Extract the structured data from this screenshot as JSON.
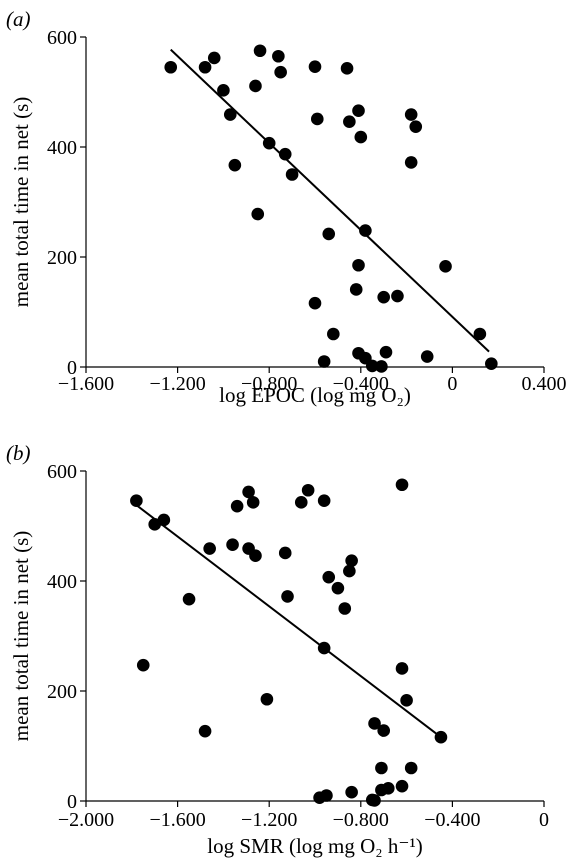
{
  "chart_data": [
    {
      "type": "scatter",
      "panel_label": "(a)",
      "xlabel": "log EPOC (log mg O₂)",
      "ylabel": "mean total time in net (s)",
      "xlim": [
        -1.6,
        0.4
      ],
      "ylim": [
        0,
        600
      ],
      "xticks": [
        -1.6,
        -1.2,
        -0.8,
        -0.4,
        0,
        0.4
      ],
      "xtick_labels": [
        "−1.600",
        "−1.200",
        "−0.800",
        "−0.400",
        "0",
        "0.400"
      ],
      "yticks": [
        0,
        200,
        400,
        600
      ],
      "ytick_labels": [
        "0",
        "200",
        "400",
        "600"
      ],
      "grid": false,
      "points": [
        [
          -1.23,
          545
        ],
        [
          -1.08,
          545
        ],
        [
          -1.04,
          562
        ],
        [
          -1.0,
          503
        ],
        [
          -0.97,
          459
        ],
        [
          -0.95,
          367
        ],
        [
          -0.86,
          511
        ],
        [
          -0.84,
          575
        ],
        [
          -0.76,
          565
        ],
        [
          -0.75,
          536
        ],
        [
          -0.8,
          407
        ],
        [
          -0.73,
          387
        ],
        [
          -0.7,
          350
        ],
        [
          -0.85,
          278
        ],
        [
          -0.6,
          546
        ],
        [
          -0.59,
          451
        ],
        [
          -0.46,
          543
        ],
        [
          -0.45,
          446
        ],
        [
          -0.41,
          466
        ],
        [
          -0.4,
          418
        ],
        [
          -0.18,
          459
        ],
        [
          -0.16,
          437
        ],
        [
          -0.18,
          372
        ],
        [
          -0.54,
          242
        ],
        [
          -0.38,
          248
        ],
        [
          -0.41,
          185
        ],
        [
          -0.6,
          116
        ],
        [
          -0.42,
          141
        ],
        [
          -0.3,
          127
        ],
        [
          -0.24,
          129
        ],
        [
          -0.03,
          183
        ],
        [
          -0.52,
          60
        ],
        [
          -0.56,
          10
        ],
        [
          -0.41,
          25
        ],
        [
          -0.38,
          16
        ],
        [
          -0.29,
          27
        ],
        [
          -0.35,
          2
        ],
        [
          -0.31,
          1
        ],
        [
          -0.11,
          19
        ],
        [
          0.12,
          60
        ],
        [
          0.17,
          6
        ]
      ],
      "trendline": [
        [
          -1.23,
          577
        ],
        [
          0.16,
          28
        ]
      ]
    },
    {
      "type": "scatter",
      "panel_label": "(b)",
      "xlabel": "log SMR (log mg O₂ h⁻¹)",
      "ylabel": "mean total time in net (s)",
      "xlim": [
        -2.0,
        0
      ],
      "ylim": [
        0,
        600
      ],
      "xticks": [
        -2.0,
        -1.6,
        -1.2,
        -0.8,
        -0.4,
        0
      ],
      "xtick_labels": [
        "−2.000",
        "−1.600",
        "−1.200",
        "−0.800",
        "−0.400",
        "0"
      ],
      "yticks": [
        0,
        200,
        400,
        600
      ],
      "ytick_labels": [
        "0",
        "200",
        "400",
        "600"
      ],
      "grid": false,
      "points": [
        [
          -1.78,
          546
        ],
        [
          -1.7,
          503
        ],
        [
          -1.66,
          511
        ],
        [
          -1.75,
          247
        ],
        [
          -1.46,
          459
        ],
        [
          -1.55,
          367
        ],
        [
          -1.48,
          127
        ],
        [
          -1.34,
          536
        ],
        [
          -1.29,
          562
        ],
        [
          -1.27,
          543
        ],
        [
          -1.36,
          466
        ],
        [
          -1.29,
          459
        ],
        [
          -1.26,
          446
        ],
        [
          -1.13,
          451
        ],
        [
          -1.12,
          372
        ],
        [
          -1.06,
          543
        ],
        [
          -1.03,
          565
        ],
        [
          -0.96,
          546
        ],
        [
          -1.21,
          185
        ],
        [
          -0.94,
          407
        ],
        [
          -0.9,
          387
        ],
        [
          -0.87,
          350
        ],
        [
          -0.85,
          418
        ],
        [
          -0.84,
          437
        ],
        [
          -0.96,
          278
        ],
        [
          -0.62,
          575
        ],
        [
          -0.62,
          241
        ],
        [
          -0.6,
          183
        ],
        [
          -0.74,
          141
        ],
        [
          -0.7,
          128
        ],
        [
          -0.45,
          116
        ],
        [
          -0.71,
          60
        ],
        [
          -0.58,
          60
        ],
        [
          -0.98,
          6
        ],
        [
          -0.95,
          10
        ],
        [
          -0.84,
          16
        ],
        [
          -0.75,
          2
        ],
        [
          -0.74,
          1
        ],
        [
          -0.71,
          20
        ],
        [
          -0.68,
          23
        ],
        [
          -0.62,
          27
        ]
      ],
      "trendline": [
        [
          -1.78,
          538
        ],
        [
          -0.45,
          116
        ]
      ]
    }
  ]
}
